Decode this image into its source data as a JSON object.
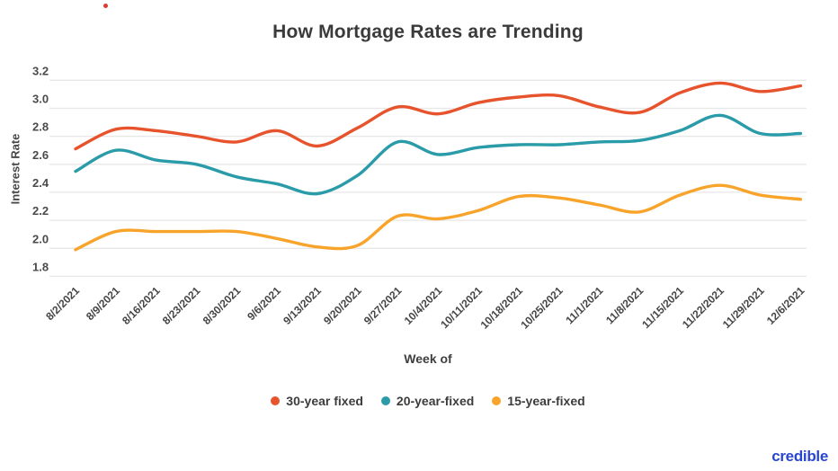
{
  "title": "How Mortgage Rates are Trending",
  "brand": "credible",
  "artifact": {
    "color": "#e03a2f"
  },
  "colors": {
    "grid": "#e7e7e7",
    "axis_text": "#4a4a4a",
    "title_text": "#3a3a3a",
    "brand_blue": "#2946d2"
  },
  "chart_data": {
    "type": "line",
    "title": "How Mortgage Rates are Trending",
    "xlabel": "Week of",
    "ylabel": "Interest Rate",
    "ylim": [
      1.8,
      3.2
    ],
    "ytick_step": 0.2,
    "yticks": [
      "3.2",
      "3.0",
      "2.8",
      "2.6",
      "2.4",
      "2.2",
      "2.0",
      "1.8"
    ],
    "grid": "horizontal",
    "legend_position": "bottom",
    "line_style": "smooth",
    "categories": [
      "8/2/2021",
      "8/9/2021",
      "8/16/2021",
      "8/23/2021",
      "8/30/2021",
      "9/6/2021",
      "9/13/2021",
      "9/20/2021",
      "9/27/2021",
      "10/4/2021",
      "10/11/2021",
      "10/18/2021",
      "10/25/2021",
      "11/1/2021",
      "11/8/2021",
      "11/15/2021",
      "11/22/2021",
      "11/29/2021",
      "12/6/2021"
    ],
    "series": [
      {
        "name": "30-year fixed",
        "color": "#e6532c",
        "values": [
          2.71,
          2.85,
          2.84,
          2.8,
          2.76,
          2.84,
          2.73,
          2.86,
          3.01,
          2.96,
          3.04,
          3.08,
          3.09,
          3.01,
          2.97,
          3.11,
          3.18,
          3.12,
          3.16
        ]
      },
      {
        "name": "20-year-fixed",
        "color": "#2a9ba8",
        "values": [
          2.55,
          2.7,
          2.63,
          2.6,
          2.51,
          2.46,
          2.39,
          2.52,
          2.76,
          2.67,
          2.72,
          2.74,
          2.74,
          2.76,
          2.77,
          2.84,
          2.95,
          2.82,
          2.82
        ]
      },
      {
        "name": "15-year-fixed",
        "color": "#f8a42b",
        "values": [
          1.99,
          2.12,
          2.12,
          2.12,
          2.12,
          2.07,
          2.01,
          2.02,
          2.23,
          2.21,
          2.27,
          2.37,
          2.36,
          2.31,
          2.26,
          2.38,
          2.45,
          2.38,
          2.35
        ]
      }
    ]
  }
}
